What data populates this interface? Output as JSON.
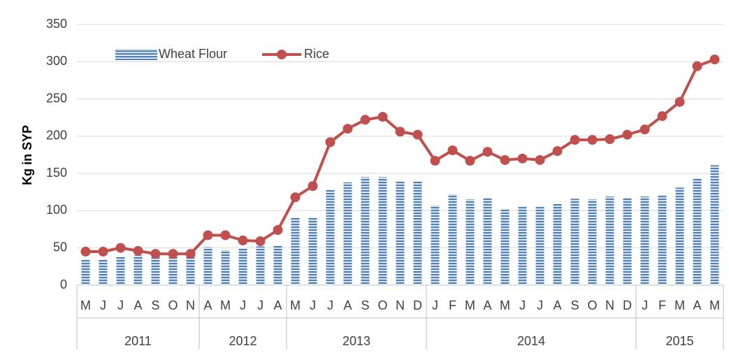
{
  "chart_data": {
    "type": "bar-line",
    "y_label": "Kg in SYP",
    "categories": [
      "M",
      "J",
      "J",
      "A",
      "S",
      "O",
      "N",
      "A",
      "M",
      "J",
      "J",
      "A",
      "M",
      "J",
      "J",
      "A",
      "S",
      "O",
      "N",
      "D",
      "J",
      "F",
      "M",
      "A",
      "M",
      "J",
      "J",
      "A",
      "S",
      "O",
      "N",
      "D",
      "J",
      "F",
      "M",
      "A",
      "M"
    ],
    "years": [
      "2011",
      null,
      null,
      null,
      null,
      null,
      null,
      "2012",
      null,
      null,
      null,
      null,
      "2013",
      null,
      null,
      null,
      null,
      null,
      null,
      null,
      "2014",
      null,
      null,
      null,
      null,
      null,
      null,
      null,
      null,
      null,
      null,
      null,
      "2015",
      null,
      null,
      null,
      null
    ],
    "series": [
      {
        "name": "Wheat Flour",
        "type": "bar",
        "color": "#4f81bd",
        "values": [
          35,
          35,
          38,
          40,
          39,
          40,
          40,
          51,
          47,
          50,
          52,
          53,
          91,
          91,
          129,
          138,
          145,
          145,
          140,
          140,
          107,
          122,
          115,
          117,
          102,
          105,
          105,
          110,
          116,
          115,
          119,
          117,
          119,
          121,
          131,
          144,
          161
        ]
      },
      {
        "name": "Rice",
        "type": "line",
        "color": "#c0504d",
        "values": [
          45,
          45,
          50,
          46,
          42,
          42,
          42,
          67,
          67,
          60,
          59,
          74,
          118,
          133,
          192,
          210,
          222,
          226,
          206,
          202,
          167,
          181,
          167,
          179,
          168,
          170,
          168,
          180,
          195,
          195,
          196,
          202,
          209,
          227,
          246,
          294,
          303
        ]
      }
    ],
    "ylim": [
      0,
      350
    ],
    "yticks": [
      0,
      50,
      100,
      150,
      200,
      250,
      300,
      350
    ],
    "grid": true,
    "legend": "top-left"
  }
}
